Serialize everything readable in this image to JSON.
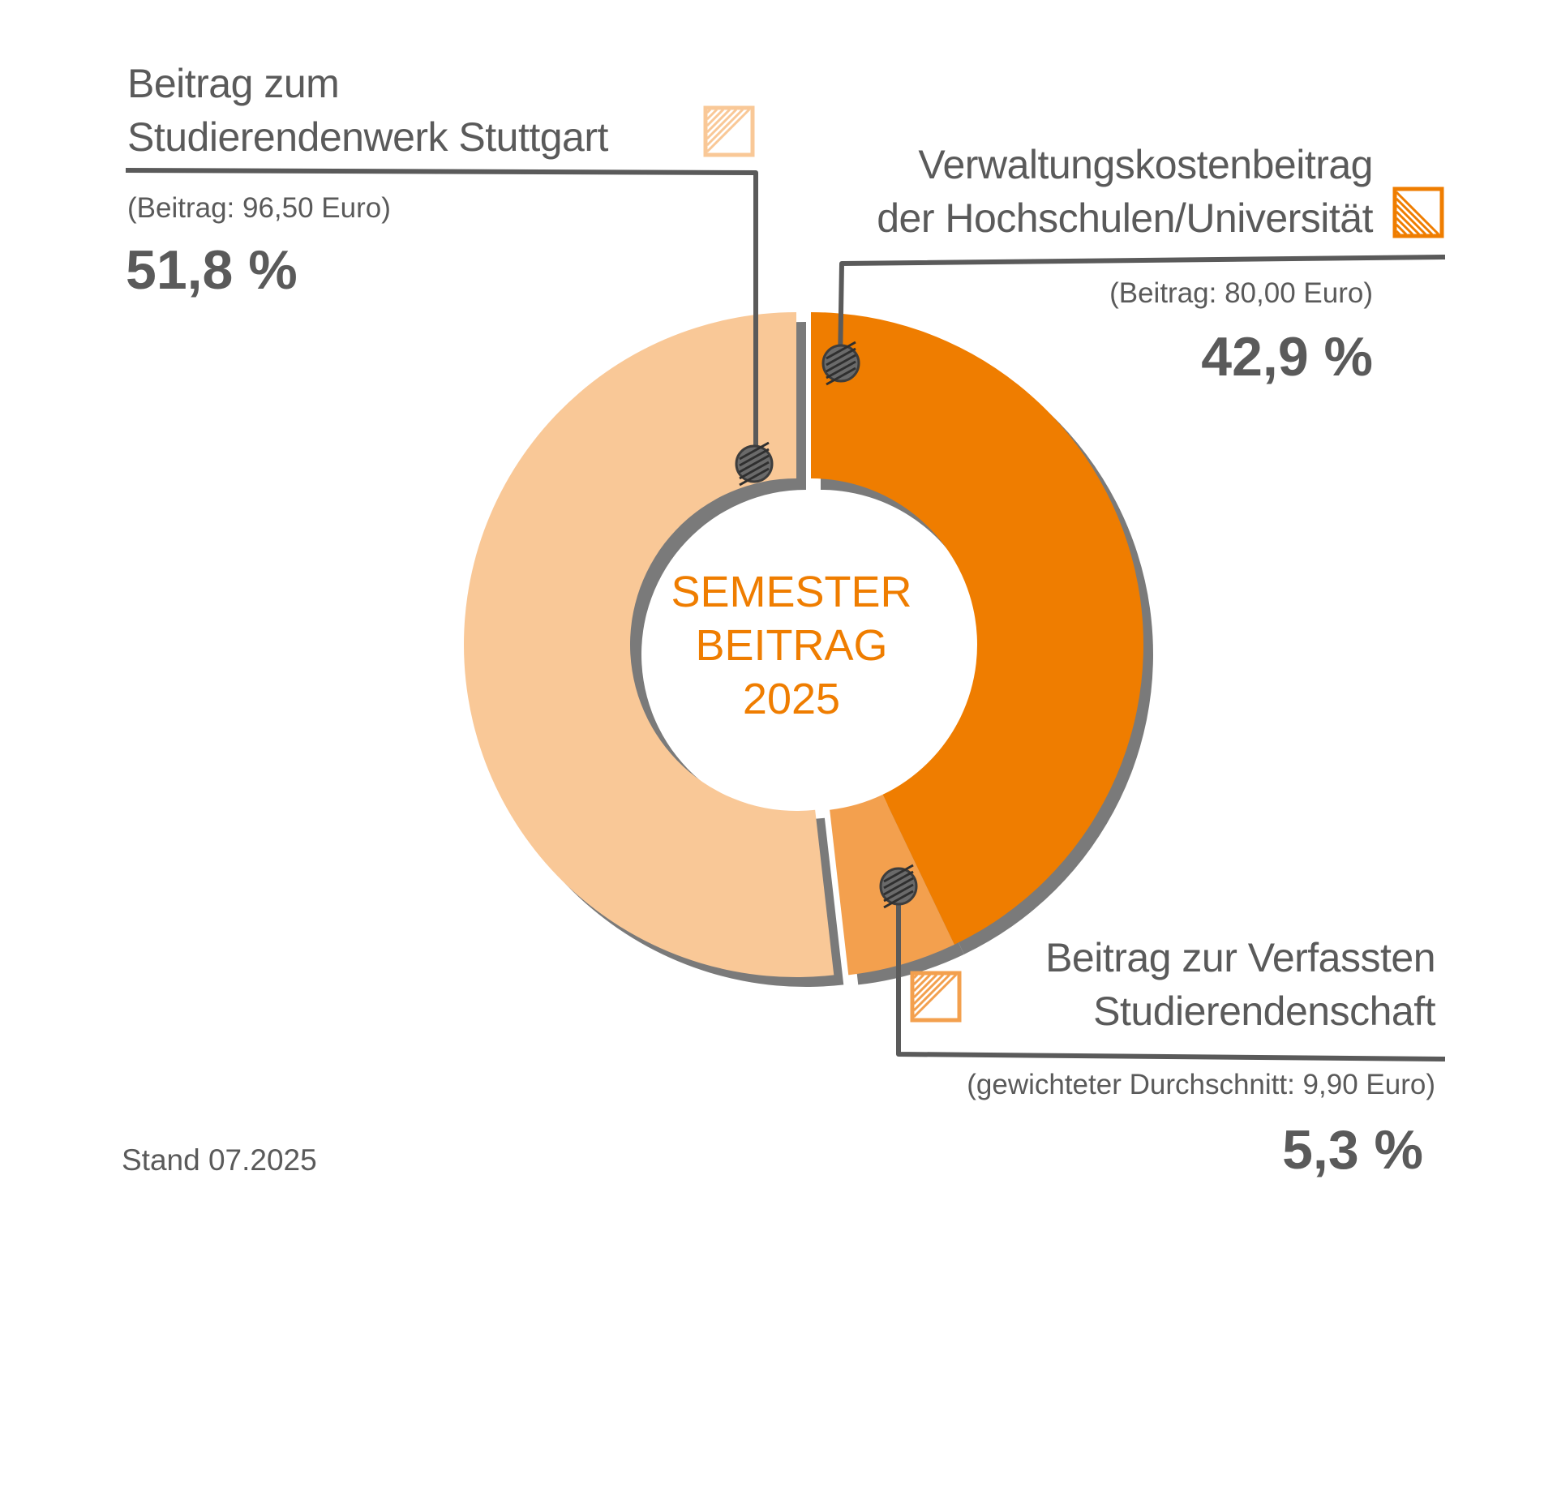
{
  "chart_data": {
    "type": "donut",
    "center_label": [
      "SEMESTER",
      "BEITRAG",
      "2025"
    ],
    "footnote": "Stand 07.2025",
    "segments": [
      {
        "title_lines": [
          "Verwaltungskostenbeitrag",
          "der Hochschulen/Universität"
        ],
        "amount": "(Beitrag: 80,00 Euro)",
        "percent_label": "42,9 %",
        "value": 42.9,
        "color": "#ef7d00",
        "shadow": "#7a7a7a"
      },
      {
        "title_lines": [
          "Beitrag zur Verfassten",
          "Studierendenschaft"
        ],
        "amount": "(gewichteter Durchschnitt: 9,90 Euro)",
        "percent_label": "5,3 %",
        "value": 5.3,
        "color": "#f3a04e",
        "shadow": "#7a7a7a"
      },
      {
        "title_lines": [
          "Beitrag zum",
          "Studierendenwerk Stuttgart"
        ],
        "amount": "(Beitrag: 96,50 Euro)",
        "percent_label": "51,8 %",
        "value": 51.8,
        "color": "#f9c897",
        "shadow": "#7a7a7a"
      }
    ]
  }
}
